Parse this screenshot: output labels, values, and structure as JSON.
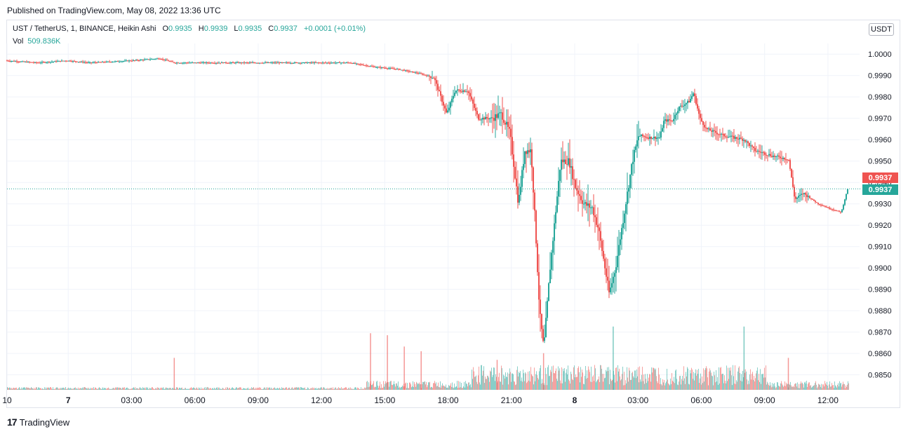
{
  "header": {
    "published": "Published on TradingView.com, May 08, 2022 13:36 UTC"
  },
  "legend": {
    "symbol": "UST / TetherUS, 1, BINANCE, Heikin Ashi",
    "o_label": "O",
    "o_value": "0.9935",
    "h_label": "H",
    "h_value": "0.9939",
    "l_label": "L",
    "l_value": "0.9935",
    "c_label": "C",
    "c_value": "0.9937",
    "change": "+0.0001 (+0.01%)",
    "vol_label": "Vol",
    "vol_value": "509.836K"
  },
  "toolbar": {
    "currency": "USDT"
  },
  "price_tags": {
    "high_tag": "0.9937",
    "last_tag": "0.9937"
  },
  "footer": {
    "brand": "TradingView",
    "logo_glyph": "17"
  },
  "colors": {
    "up": "#26a69a",
    "down": "#ef5350",
    "grid": "#f0f3fa",
    "axis_text": "#131722"
  },
  "chart_data": {
    "type": "candlestick",
    "style": "Heikin Ashi",
    "interval": "1",
    "ylim": [
      0.9843,
      1.0005
    ],
    "y_ticks": [
      "1.0000",
      "0.9990",
      "0.9980",
      "0.9970",
      "0.9960",
      "0.9950",
      "0.9940",
      "0.9930",
      "0.9920",
      "0.9910",
      "0.9900",
      "0.9890",
      "0.9880",
      "0.9870",
      "0.9860",
      "0.9850"
    ],
    "x_ticks": [
      {
        "label": "10",
        "t": 0,
        "bold": false
      },
      {
        "label": "7",
        "t": 2.9,
        "bold": true
      },
      {
        "label": "03:00",
        "t": 5.9,
        "bold": false
      },
      {
        "label": "06:00",
        "t": 8.9,
        "bold": false
      },
      {
        "label": "09:00",
        "t": 11.9,
        "bold": false
      },
      {
        "label": "12:00",
        "t": 14.9,
        "bold": false
      },
      {
        "label": "15:00",
        "t": 17.9,
        "bold": false
      },
      {
        "label": "18:00",
        "t": 20.9,
        "bold": false
      },
      {
        "label": "21:00",
        "t": 23.9,
        "bold": false
      },
      {
        "label": "8",
        "t": 26.9,
        "bold": true
      },
      {
        "label": "03:00",
        "t": 29.9,
        "bold": false
      },
      {
        "label": "06:00",
        "t": 32.9,
        "bold": false
      },
      {
        "label": "09:00",
        "t": 35.9,
        "bold": false
      },
      {
        "label": "12:00",
        "t": 38.9,
        "bold": false
      }
    ],
    "last_price": 0.9937,
    "price_path": [
      [
        0,
        0.9997
      ],
      [
        1.5,
        0.9996
      ],
      [
        2.9,
        0.9997
      ],
      [
        4,
        0.9996
      ],
      [
        6,
        0.9997
      ],
      [
        7.3,
        0.9998
      ],
      [
        8,
        0.9996
      ],
      [
        12,
        0.9996
      ],
      [
        16.3,
        0.9996
      ],
      [
        17.5,
        0.9994
      ],
      [
        18.6,
        0.9993
      ],
      [
        19.6,
        0.9991
      ],
      [
        20.3,
        0.9989
      ],
      [
        20.9,
        0.9972
      ],
      [
        21.3,
        0.9983
      ],
      [
        21.9,
        0.9983
      ],
      [
        22.4,
        0.997
      ],
      [
        23,
        0.997
      ],
      [
        23.5,
        0.9972
      ],
      [
        23.9,
        0.9963
      ],
      [
        24.3,
        0.993
      ],
      [
        24.6,
        0.9955
      ],
      [
        24.9,
        0.9955
      ],
      [
        25.1,
        0.992
      ],
      [
        25.3,
        0.988
      ],
      [
        25.5,
        0.9862
      ],
      [
        25.8,
        0.99
      ],
      [
        26.1,
        0.993
      ],
      [
        26.3,
        0.995
      ],
      [
        26.7,
        0.995
      ],
      [
        27,
        0.9938
      ],
      [
        27.4,
        0.993
      ],
      [
        27.8,
        0.9928
      ],
      [
        28.1,
        0.9918
      ],
      [
        28.4,
        0.99
      ],
      [
        28.6,
        0.9888
      ],
      [
        28.9,
        0.99
      ],
      [
        29.3,
        0.9925
      ],
      [
        29.7,
        0.995
      ],
      [
        30,
        0.9962
      ],
      [
        30.5,
        0.9961
      ],
      [
        31,
        0.9961
      ],
      [
        31.2,
        0.9969
      ],
      [
        31.6,
        0.9969
      ],
      [
        31.9,
        0.9975
      ],
      [
        32.4,
        0.9978
      ],
      [
        32.6,
        0.9982
      ],
      [
        32.9,
        0.997
      ],
      [
        33.2,
        0.9965
      ],
      [
        34,
        0.9962
      ],
      [
        35,
        0.996
      ],
      [
        35.5,
        0.9955
      ],
      [
        36.5,
        0.9952
      ],
      [
        37.1,
        0.9951
      ],
      [
        37.4,
        0.9932
      ],
      [
        37.8,
        0.9935
      ],
      [
        38.5,
        0.993
      ],
      [
        39,
        0.9928
      ],
      [
        39.6,
        0.9926
      ],
      [
        39.9,
        0.9937
      ]
    ],
    "volume_spikes": [
      {
        "t": 7.9,
        "rel": 0.48
      },
      {
        "t": 17.2,
        "rel": 0.85
      },
      {
        "t": 18.0,
        "rel": 0.82
      },
      {
        "t": 18.8,
        "rel": 0.65
      },
      {
        "t": 19.6,
        "rel": 0.58
      },
      {
        "t": 23.2,
        "rel": 0.45
      },
      {
        "t": 25.4,
        "rel": 0.55
      },
      {
        "t": 28.7,
        "rel": 0.95
      },
      {
        "t": 34.9,
        "rel": 0.95
      },
      {
        "t": 37.0,
        "rel": 0.48
      }
    ]
  }
}
